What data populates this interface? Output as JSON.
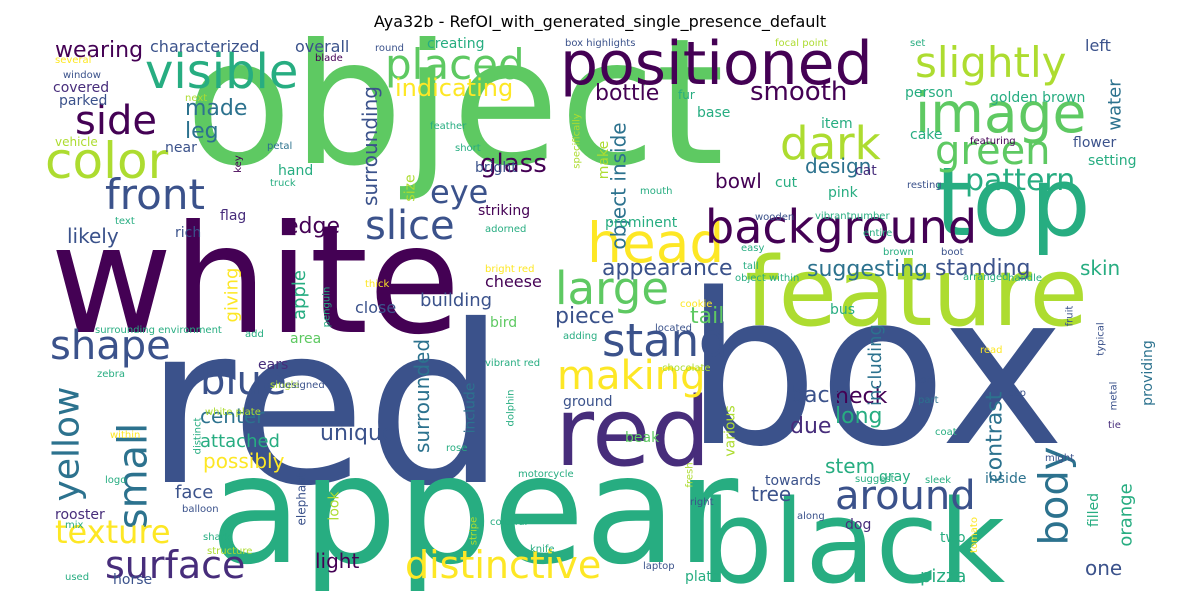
{
  "title": "Aya32b - RefOI_with_generated_single_presence_default",
  "colors": {
    "c1": "#440154",
    "c2": "#3b528b",
    "c3": "#21918c",
    "c4": "#5ec962",
    "c5": "#fde725",
    "c6": "#2c728e",
    "c7": "#27ad81",
    "c8": "#addc30",
    "c9": "#472d7b"
  },
  "words": [
    {
      "id": "object",
      "text": "object"
    },
    {
      "id": "red",
      "text": "red"
    },
    {
      "id": "box",
      "text": "box"
    },
    {
      "id": "white",
      "text": "white"
    },
    {
      "id": "appear",
      "text": "appear"
    },
    {
      "id": "black",
      "text": "black"
    },
    {
      "id": "feature",
      "text": "feature"
    },
    {
      "id": "top",
      "text": "top"
    },
    {
      "id": "red2",
      "text": "red"
    },
    {
      "id": "positioned",
      "text": "positioned"
    },
    {
      "id": "visible",
      "text": "visible"
    },
    {
      "id": "image",
      "text": "image"
    },
    {
      "id": "placed",
      "text": "placed"
    },
    {
      "id": "slightly",
      "text": "slightly"
    },
    {
      "id": "color",
      "text": "color"
    },
    {
      "id": "side",
      "text": "side"
    },
    {
      "id": "front",
      "text": "front"
    },
    {
      "id": "head",
      "text": "head"
    },
    {
      "id": "background",
      "text": "background"
    },
    {
      "id": "dark",
      "text": "dark"
    },
    {
      "id": "green",
      "text": "green"
    },
    {
      "id": "slice",
      "text": "slice"
    },
    {
      "id": "large",
      "text": "large"
    },
    {
      "id": "stand",
      "text": "stand"
    },
    {
      "id": "making",
      "text": "making"
    },
    {
      "id": "shape",
      "text": "shape"
    },
    {
      "id": "small",
      "text": "small"
    },
    {
      "id": "yellow",
      "text": "yellow"
    },
    {
      "id": "blue",
      "text": "blue"
    },
    {
      "id": "surface",
      "text": "surface"
    },
    {
      "id": "distinctive",
      "text": "distinctive"
    },
    {
      "id": "around",
      "text": "around"
    },
    {
      "id": "body",
      "text": "body"
    },
    {
      "id": "pattern",
      "text": "pattern"
    },
    {
      "id": "texture",
      "text": "texture"
    },
    {
      "id": "eye",
      "text": "eye"
    },
    {
      "id": "glass",
      "text": "glass"
    },
    {
      "id": "smooth",
      "text": "smooth"
    },
    {
      "id": "indicating",
      "text": "indicating"
    },
    {
      "id": "bottle",
      "text": "bottle"
    },
    {
      "id": "wearing",
      "text": "wearing"
    },
    {
      "id": "made",
      "text": "made"
    },
    {
      "id": "leg",
      "text": "leg"
    },
    {
      "id": "appearance",
      "text": "appearance"
    },
    {
      "id": "suggesting",
      "text": "suggesting"
    },
    {
      "id": "standing",
      "text": "standing"
    },
    {
      "id": "contrast",
      "text": "contrast"
    },
    {
      "id": "unique",
      "text": "unique"
    },
    {
      "id": "neck",
      "text": "neck"
    },
    {
      "id": "long",
      "text": "long"
    },
    {
      "id": "due",
      "text": "due"
    },
    {
      "id": "back",
      "text": "back"
    },
    {
      "id": "including",
      "text": "including"
    },
    {
      "id": "surrounding",
      "text": "surrounding"
    },
    {
      "id": "surrounded",
      "text": "surrounded"
    },
    {
      "id": "object_inside",
      "text": "object inside"
    },
    {
      "id": "tail",
      "text": "tail"
    },
    {
      "id": "piece",
      "text": "piece"
    },
    {
      "id": "edge",
      "text": "edge"
    },
    {
      "id": "likely",
      "text": "likely"
    },
    {
      "id": "giving",
      "text": "giving"
    },
    {
      "id": "apple",
      "text": "apple"
    },
    {
      "id": "possibly",
      "text": "possibly"
    },
    {
      "id": "center",
      "text": "center"
    },
    {
      "id": "attached",
      "text": "attached"
    },
    {
      "id": "light",
      "text": "light"
    },
    {
      "id": "orange",
      "text": "orange"
    },
    {
      "id": "one",
      "text": "one"
    },
    {
      "id": "tree",
      "text": "tree"
    },
    {
      "id": "stem",
      "text": "stem"
    },
    {
      "id": "design",
      "text": "design"
    },
    {
      "id": "bowl",
      "text": "bowl"
    },
    {
      "id": "skin",
      "text": "skin"
    },
    {
      "id": "water",
      "text": "water"
    },
    {
      "id": "face",
      "text": "face"
    },
    {
      "id": "pizza",
      "text": "pizza"
    },
    {
      "id": "building",
      "text": "building"
    },
    {
      "id": "cheese",
      "text": "cheese"
    },
    {
      "id": "close",
      "text": "close"
    },
    {
      "id": "characterized",
      "text": "characterized"
    },
    {
      "id": "overall",
      "text": "overall"
    },
    {
      "id": "creating",
      "text": "creating"
    },
    {
      "id": "left",
      "text": "left"
    },
    {
      "id": "covered",
      "text": "covered"
    },
    {
      "id": "parked",
      "text": "parked"
    },
    {
      "id": "golden_brown",
      "text": "golden brown"
    },
    {
      "id": "person",
      "text": "person"
    },
    {
      "id": "flower",
      "text": "flower"
    },
    {
      "id": "setting",
      "text": "setting"
    },
    {
      "id": "cake",
      "text": "cake"
    },
    {
      "id": "cat",
      "text": "cat"
    },
    {
      "id": "pink",
      "text": "pink"
    },
    {
      "id": "cut",
      "text": "cut"
    },
    {
      "id": "hand",
      "text": "hand"
    },
    {
      "id": "bright",
      "text": "bright"
    },
    {
      "id": "striking",
      "text": "striking"
    },
    {
      "id": "prominent",
      "text": "prominent"
    },
    {
      "id": "flag",
      "text": "flag"
    },
    {
      "id": "rich",
      "text": "rich"
    },
    {
      "id": "bird",
      "text": "bird"
    },
    {
      "id": "area",
      "text": "area"
    },
    {
      "id": "ears",
      "text": "ears"
    },
    {
      "id": "rooster",
      "text": "rooster"
    },
    {
      "id": "horse",
      "text": "horse"
    },
    {
      "id": "plate",
      "text": "plate"
    },
    {
      "id": "dog",
      "text": "dog"
    },
    {
      "id": "two",
      "text": "two"
    },
    {
      "id": "gray",
      "text": "gray"
    },
    {
      "id": "inside",
      "text": "inside"
    },
    {
      "id": "towards",
      "text": "towards"
    },
    {
      "id": "bus",
      "text": "bus"
    },
    {
      "id": "beak",
      "text": "beak"
    },
    {
      "id": "ground",
      "text": "ground"
    },
    {
      "id": "look",
      "text": "look"
    },
    {
      "id": "include",
      "text": "include"
    },
    {
      "id": "various",
      "text": "various"
    },
    {
      "id": "providing",
      "text": "providing"
    },
    {
      "id": "filled",
      "text": "filled"
    },
    {
      "id": "item",
      "text": "item"
    },
    {
      "id": "base",
      "text": "base"
    },
    {
      "id": "size",
      "text": "size"
    },
    {
      "id": "near",
      "text": "near"
    },
    {
      "id": "make",
      "text": "make"
    },
    {
      "id": "elephant",
      "text": "elephant"
    },
    {
      "id": "fur",
      "text": "fur"
    },
    {
      "id": "short",
      "text": "short"
    },
    {
      "id": "several",
      "text": "several"
    },
    {
      "id": "window",
      "text": "window"
    },
    {
      "id": "next",
      "text": "next"
    },
    {
      "id": "vehicle",
      "text": "vehicle"
    },
    {
      "id": "petal",
      "text": "petal"
    },
    {
      "id": "key",
      "text": "key"
    },
    {
      "id": "truck",
      "text": "truck"
    },
    {
      "id": "text",
      "text": "text"
    },
    {
      "id": "thick",
      "text": "thick"
    },
    {
      "id": "penguin",
      "text": "penguin"
    },
    {
      "id": "surrounding_environment",
      "text": "surrounding environment"
    },
    {
      "id": "add",
      "text": "add"
    },
    {
      "id": "single",
      "text": "single"
    },
    {
      "id": "zebra",
      "text": "zebra"
    },
    {
      "id": "designed",
      "text": "designed"
    },
    {
      "id": "white_plate",
      "text": "white plate"
    },
    {
      "id": "within",
      "text": "within"
    },
    {
      "id": "distinct",
      "text": "distinct"
    },
    {
      "id": "logo",
      "text": "logo"
    },
    {
      "id": "balloon",
      "text": "balloon"
    },
    {
      "id": "mix",
      "text": "mix"
    },
    {
      "id": "shark",
      "text": "shark"
    },
    {
      "id": "structure",
      "text": "structure"
    },
    {
      "id": "used",
      "text": "used"
    },
    {
      "id": "knife",
      "text": "knife"
    },
    {
      "id": "colorful",
      "text": "colorful"
    },
    {
      "id": "stripe",
      "text": "stripe"
    },
    {
      "id": "rose",
      "text": "rose"
    },
    {
      "id": "motorcycle",
      "text": "motorcycle"
    },
    {
      "id": "dolphin",
      "text": "dolphin"
    },
    {
      "id": "chocolate",
      "text": "chocolate"
    },
    {
      "id": "adding",
      "text": "adding"
    },
    {
      "id": "vibrant_red",
      "text": "vibrant red"
    },
    {
      "id": "located",
      "text": "located"
    },
    {
      "id": "cookie",
      "text": "cookie"
    },
    {
      "id": "bright_red",
      "text": "bright red"
    },
    {
      "id": "adorned",
      "text": "adorned"
    },
    {
      "id": "wooden",
      "text": "wooden"
    },
    {
      "id": "vibrantnumber",
      "text": "vibrantnumber"
    },
    {
      "id": "easy",
      "text": "easy"
    },
    {
      "id": "object_within",
      "text": "object within"
    },
    {
      "id": "tall",
      "text": "tall"
    },
    {
      "id": "brown",
      "text": "brown"
    },
    {
      "id": "boot",
      "text": "boot"
    },
    {
      "id": "arranged",
      "text": "arranged"
    },
    {
      "id": "handle",
      "text": "handle"
    },
    {
      "id": "entire",
      "text": "entire"
    },
    {
      "id": "resting",
      "text": "resting"
    },
    {
      "id": "featuring",
      "text": "featuring"
    },
    {
      "id": "mouth",
      "text": "mouth"
    },
    {
      "id": "box_highlights",
      "text": "box highlights"
    },
    {
      "id": "focal_point",
      "text": "focal point"
    },
    {
      "id": "round",
      "text": "round"
    },
    {
      "id": "blade",
      "text": "blade"
    },
    {
      "id": "feather",
      "text": "feather"
    },
    {
      "id": "specifically",
      "text": "specifically"
    },
    {
      "id": "set",
      "text": "set"
    },
    {
      "id": "fruit",
      "text": "fruit"
    },
    {
      "id": "typical",
      "text": "typical"
    },
    {
      "id": "cap",
      "text": "cap"
    },
    {
      "id": "read",
      "text": "read"
    },
    {
      "id": "soft",
      "text": "soft"
    },
    {
      "id": "part",
      "text": "part"
    },
    {
      "id": "coat",
      "text": "coat"
    },
    {
      "id": "metal",
      "text": "metal"
    },
    {
      "id": "tie",
      "text": "tie"
    },
    {
      "id": "might",
      "text": "might"
    },
    {
      "id": "suggest",
      "text": "suggest"
    },
    {
      "id": "sleek",
      "text": "sleek"
    },
    {
      "id": "along",
      "text": "along"
    },
    {
      "id": "fresh",
      "text": "fresh"
    },
    {
      "id": "right",
      "text": "right"
    },
    {
      "id": "tomato",
      "text": "tomato"
    },
    {
      "id": "laptop",
      "text": "laptop"
    }
  ]
}
